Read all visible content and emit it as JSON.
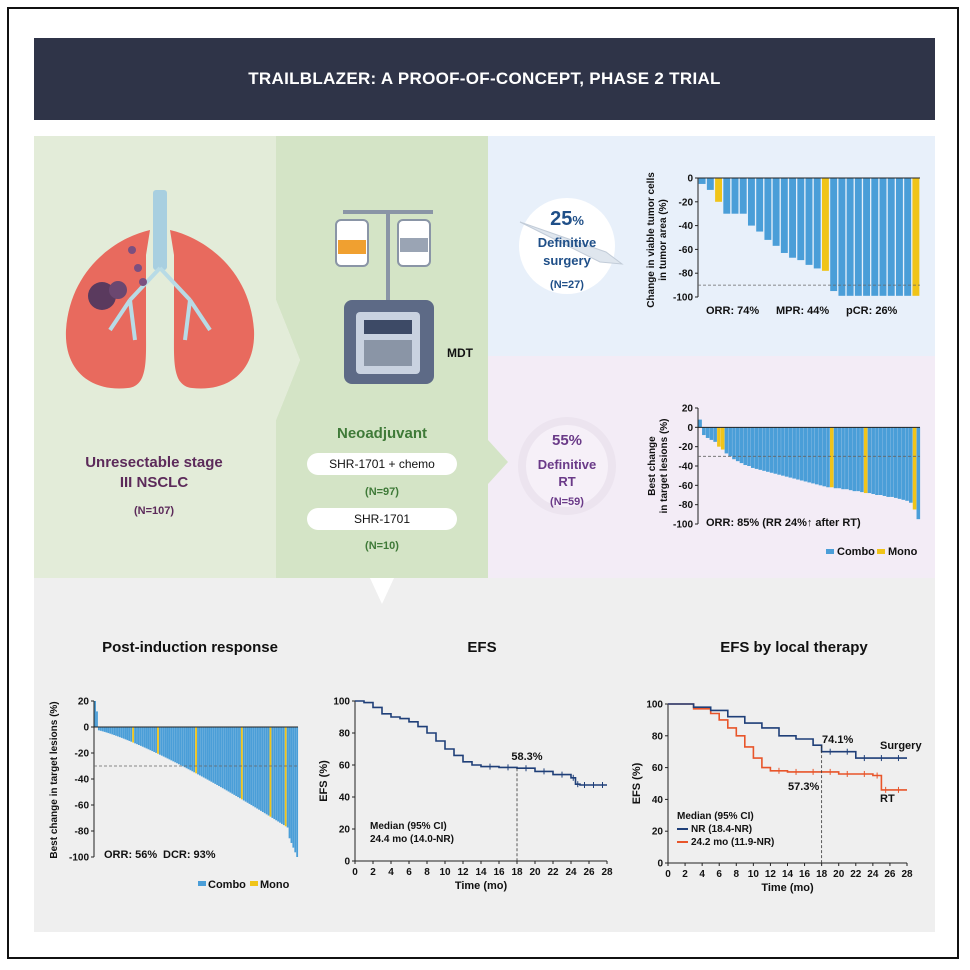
{
  "title": "TRAILBLAZER: A PROOF-OF-CONCEPT, PHASE 2 TRIAL",
  "colors": {
    "title_bg": "#2f3448",
    "green_panel": "#e3ecd9",
    "green_panel_dark": "#d4e4c6",
    "blue_panel": "#e8f0fa",
    "pink_panel": "#f3ecf6",
    "bottom_panel": "#efefef",
    "combo": "#4a9ed8",
    "mono": "#f0c419",
    "dark_blue": "#1f3f78",
    "orange": "#e8552a",
    "purple_text": "#5c2a5a",
    "green_text": "#3f7a38"
  },
  "population": {
    "label_line1": "Unresectable stage",
    "label_line2": "III NSCLC",
    "n": "(N=107)"
  },
  "treatment": {
    "mdt": "MDT",
    "neoadjuvant": "Neoadjuvant",
    "arm1": "SHR-1701 + chemo",
    "arm1_n": "(N=97)",
    "arm2": "SHR-1701",
    "arm2_n": "(N=10)"
  },
  "surgery": {
    "pct": "25",
    "pct_sign": "%",
    "label_line1": "Definitive",
    "label_line2": "surgery",
    "n": "(N=27)"
  },
  "rt": {
    "pct": "55%",
    "label_line1": "Definitive",
    "label_line2": "RT",
    "n": "(N=59)"
  },
  "icons": [
    "lungs-icon",
    "iv-pump-icon",
    "scalpel-icon",
    "radiation-icon"
  ],
  "chart_data": [
    {
      "type": "bar",
      "id": "surgery-waterfall",
      "ylabel_line1": "Change in viable tumor cells",
      "ylabel_line2": "in tumor area (%)",
      "ylim": [
        -100,
        0
      ],
      "yticks": [
        "0",
        "-20",
        "-40",
        "-60",
        "-80",
        "-100"
      ],
      "reference_line": -90,
      "annotations": [
        "ORR: 74%",
        "MPR: 44%",
        "pCR: 26%"
      ],
      "values": [
        -5,
        -10,
        -20,
        -30,
        -30,
        -30,
        -40,
        -45,
        -52,
        -57,
        -63,
        -67,
        -69,
        -73,
        -76,
        -78,
        -95,
        -99,
        -99,
        -99,
        -99,
        -99,
        -99,
        -99,
        -99,
        -99,
        -99
      ],
      "groups": [
        "c",
        "c",
        "m",
        "c",
        "c",
        "c",
        "c",
        "c",
        "c",
        "c",
        "c",
        "c",
        "c",
        "c",
        "c",
        "m",
        "c",
        "c",
        "c",
        "c",
        "c",
        "c",
        "c",
        "c",
        "c",
        "c",
        "m"
      ]
    },
    {
      "type": "bar",
      "id": "rt-waterfall",
      "ylabel_line1": "Best change",
      "ylabel_line2": "in target lesions (%)",
      "ylim": [
        -100,
        20
      ],
      "yticks": [
        "20",
        "0",
        "-20",
        "-40",
        "-60",
        "-80",
        "-100"
      ],
      "reference_line": -30,
      "annotations": [
        "ORR: 85% (RR 24%↑ after RT)"
      ],
      "legend": [
        "Combo",
        "Mono"
      ],
      "values": [
        8,
        -8,
        -11,
        -13,
        -15,
        -20,
        -23,
        -27,
        -30,
        -33,
        -35,
        -37,
        -39,
        -40,
        -42,
        -43,
        -44,
        -45,
        -46,
        -47,
        -48,
        -49,
        -50,
        -51,
        -52,
        -53,
        -54,
        -55,
        -56,
        -57,
        -58,
        -59,
        -60,
        -61,
        -62,
        -62,
        -63,
        -63,
        -64,
        -64,
        -65,
        -66,
        -66,
        -67,
        -68,
        -68,
        -69,
        -70,
        -70,
        -71,
        -72,
        -72,
        -73,
        -74,
        -75,
        -76,
        -78,
        -85,
        -95
      ],
      "mono_indices": [
        5,
        6,
        35,
        44,
        57
      ]
    },
    {
      "type": "bar",
      "id": "post-induction-waterfall",
      "title": "Post-induction response",
      "ylabel": "Best change in target lesions (%)",
      "ylim": [
        -100,
        20
      ],
      "yticks": [
        "20",
        "0",
        "-20",
        "-40",
        "-60",
        "-80",
        "-100"
      ],
      "reference_line": -30,
      "annotations": [
        "ORR: 56%",
        "DCR: 93%"
      ],
      "legend": [
        "Combo",
        "Mono"
      ],
      "n_bars": 107,
      "start": 20,
      "end": -100,
      "mono_indices": [
        20,
        33,
        53,
        77,
        92,
        100
      ]
    },
    {
      "type": "line",
      "id": "efs-km",
      "title": "EFS",
      "xlabel": "Time (mo)",
      "ylabel": "EFS (%)",
      "xlim": [
        0,
        28
      ],
      "ylim": [
        0,
        100
      ],
      "xticks": [
        "0",
        "2",
        "4",
        "6",
        "8",
        "10",
        "12",
        "14",
        "16",
        "18",
        "20",
        "22",
        "24",
        "26",
        "28"
      ],
      "yticks": [
        "0",
        "20",
        "40",
        "60",
        "80",
        "100"
      ],
      "annotation": "58.3%",
      "annotation_x": 18,
      "median_label": "Median (95% CI)",
      "median_value": "24.4 mo (14.0-NR)",
      "series": [
        {
          "x": [
            0,
            1,
            2,
            3,
            4,
            5,
            6,
            7,
            8,
            9,
            10,
            11,
            12,
            13,
            14,
            16,
            18,
            20,
            22,
            24,
            24.5,
            25,
            26,
            27,
            28
          ],
          "y": [
            100,
            99,
            96,
            92,
            90,
            89,
            87,
            84,
            80,
            75,
            70,
            66,
            62,
            60,
            59,
            58.5,
            58,
            56,
            54,
            52,
            48,
            47.5,
            47.5,
            47.5,
            47.5
          ]
        }
      ]
    },
    {
      "type": "line",
      "id": "efs-local-therapy-km",
      "title": "EFS by local therapy",
      "xlabel": "Time (mo)",
      "ylabel": "EFS (%)",
      "xlim": [
        0,
        28
      ],
      "ylim": [
        0,
        100
      ],
      "xticks": [
        "0",
        "2",
        "4",
        "6",
        "8",
        "10",
        "12",
        "14",
        "16",
        "18",
        "20",
        "22",
        "24",
        "26",
        "28"
      ],
      "yticks": [
        "0",
        "20",
        "40",
        "60",
        "80",
        "100"
      ],
      "annotations": [
        "74.1%",
        "57.3%"
      ],
      "median_label": "Median (95% CI)",
      "series": [
        {
          "name": "Surgery",
          "legend": "NR (18.4-NR)",
          "color": "#1f3f78",
          "x": [
            0,
            3,
            5,
            7,
            9,
            11,
            13,
            15,
            17,
            18,
            20,
            22,
            24,
            26,
            28
          ],
          "y": [
            100,
            98,
            96,
            92,
            88,
            85,
            80,
            78,
            74.1,
            70,
            70,
            66,
            66,
            66,
            66
          ]
        },
        {
          "name": "RT",
          "legend": "24.2 mo (11.9-NR)",
          "color": "#e8552a",
          "x": [
            0,
            3,
            5,
            6,
            7,
            8,
            9,
            10,
            11,
            12,
            14,
            16,
            18,
            20,
            22,
            24,
            25,
            26,
            28
          ],
          "y": [
            100,
            97,
            94,
            90,
            85,
            80,
            73,
            66,
            60,
            58,
            57.3,
            57.3,
            57.3,
            56,
            56,
            55,
            46,
            46,
            46
          ]
        }
      ]
    }
  ]
}
